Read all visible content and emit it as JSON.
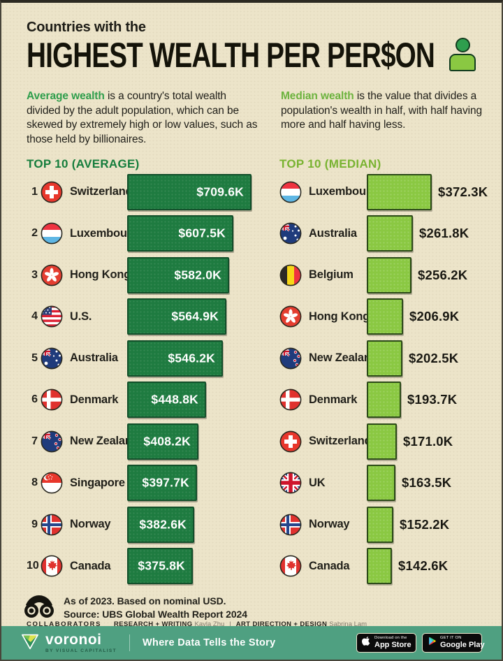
{
  "header": {
    "kicker": "Countries with the",
    "title": "HIGHEST WEALTH PER PER$ON"
  },
  "definitions": {
    "average": {
      "lead": "Average wealth",
      "rest": " is a country's total wealth divided by the adult population, which can be skewed by extremely high or low values, such as those held by billionaires."
    },
    "median": {
      "lead": "Median wealth",
      "rest": " is the value that divides a population's wealth in half, with half having more and half having less."
    }
  },
  "chart_data": [
    {
      "type": "bar",
      "orientation": "horizontal",
      "title": "TOP 10 (AVERAGE)",
      "unit": "thousand USD per adult, 2023",
      "ranks": [
        1,
        2,
        3,
        4,
        5,
        6,
        7,
        8,
        9,
        10
      ],
      "categories": [
        "Switzerland",
        "Luxembourg",
        "Hong Kong",
        "U.S.",
        "Australia",
        "Denmark",
        "New Zealand",
        "Singapore",
        "Norway",
        "Canada"
      ],
      "values": [
        709.6,
        607.5,
        582.0,
        564.9,
        546.2,
        448.8,
        408.2,
        397.7,
        382.6,
        375.8
      ],
      "labels": [
        "$709.6K",
        "$607.5K",
        "$582.0K",
        "$564.9K",
        "$546.2K",
        "$448.8K",
        "$408.2K",
        "$397.7K",
        "$382.6K",
        "$375.8K"
      ],
      "flags": [
        "ch",
        "lu",
        "hk",
        "us",
        "au",
        "dk",
        "nz",
        "sg",
        "no",
        "ca"
      ],
      "bar_color": "#1e7b40",
      "value_label_position": "inside",
      "xlim": [
        0,
        720
      ]
    },
    {
      "type": "bar",
      "orientation": "horizontal",
      "title": "TOP 10 (MEDIAN)",
      "unit": "thousand USD per adult, 2023",
      "categories": [
        "Luxembourg",
        "Australia",
        "Belgium",
        "Hong Kong",
        "New Zealand",
        "Denmark",
        "Switzerland",
        "UK",
        "Norway",
        "Canada"
      ],
      "values": [
        372.3,
        261.8,
        256.2,
        206.9,
        202.5,
        193.7,
        171.0,
        163.5,
        152.2,
        142.6
      ],
      "labels": [
        "$372.3K",
        "$261.8K",
        "$256.2K",
        "$206.9K",
        "$202.5K",
        "$193.7K",
        "$171.0K",
        "$163.5K",
        "$152.2K",
        "$142.6K"
      ],
      "flags": [
        "lu",
        "au",
        "be",
        "hk",
        "nz",
        "dk",
        "ch",
        "uk",
        "no",
        "ca"
      ],
      "bar_color": "#8ac842",
      "value_label_position": "outside",
      "xlim": [
        0,
        720
      ]
    }
  ],
  "footer": {
    "note_line1": "As of 2023. Based on nominal USD.",
    "note_line2": "Source: UBS Global Wealth Report 2024",
    "collaborators_label": "COLLABORATORS",
    "credits": [
      {
        "role": "RESEARCH + WRITING",
        "name": "Kayla Zhu"
      },
      {
        "role": "ART DIRECTION + DESIGN",
        "name": "Sabrina Lam"
      }
    ],
    "separator": "|"
  },
  "bottombar": {
    "brand": "voronoi",
    "brand_sub": "BY VISUAL CAPITALIST",
    "tagline": "Where Data Tells the Story",
    "badges": [
      {
        "icon": "apple-icon",
        "line1": "Download on the",
        "line2": "App Store"
      },
      {
        "icon": "google-play-icon",
        "line1": "GET IT ON",
        "line2": "Google Play"
      }
    ]
  },
  "icons": {
    "title_icon": "person-icon",
    "source_icon": "binoculars-mascot-icon"
  },
  "colors": {
    "background": "#ece4c9",
    "bar_average": "#1e7b40",
    "bar_median": "#8ac842",
    "accent_dark_green": "#157d3c",
    "accent_light_green": "#79b331",
    "bottom_bar": "#4fa081",
    "text": "#201f19"
  }
}
